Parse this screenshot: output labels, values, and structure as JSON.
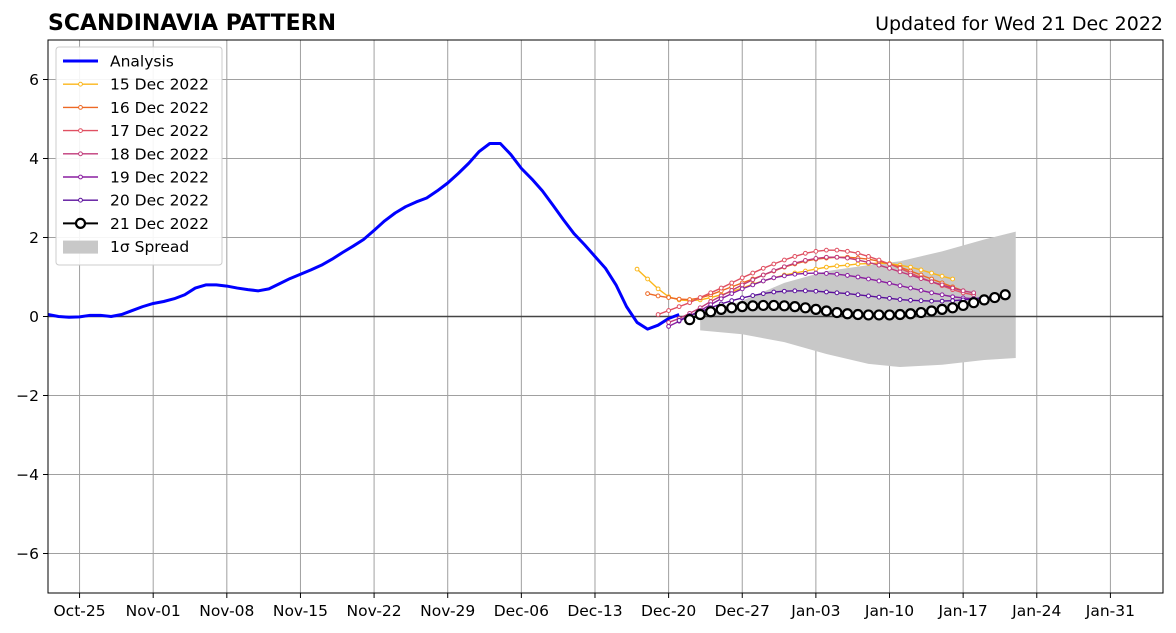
{
  "chart_data": {
    "type": "line",
    "title": "SCANDINAVIA PATTERN",
    "subtitle": "Updated for Wed 21 Dec 2022",
    "xlabel": "",
    "ylabel": "",
    "x_type": "date",
    "xlim": [
      "2022-10-22",
      "2023-02-05"
    ],
    "ylim": [
      -7,
      7
    ],
    "grid": true,
    "legend_position": "top-left",
    "x_ticks": [
      {
        "date": "2022-10-25",
        "label": "Oct-25"
      },
      {
        "date": "2022-11-01",
        "label": "Nov-01"
      },
      {
        "date": "2022-11-08",
        "label": "Nov-08"
      },
      {
        "date": "2022-11-15",
        "label": "Nov-15"
      },
      {
        "date": "2022-11-22",
        "label": "Nov-22"
      },
      {
        "date": "2022-11-29",
        "label": "Nov-29"
      },
      {
        "date": "2022-12-06",
        "label": "Dec-06"
      },
      {
        "date": "2022-12-13",
        "label": "Dec-13"
      },
      {
        "date": "2022-12-20",
        "label": "Dec-20"
      },
      {
        "date": "2022-12-27",
        "label": "Dec-27"
      },
      {
        "date": "2023-01-03",
        "label": "Jan-03"
      },
      {
        "date": "2023-01-10",
        "label": "Jan-10"
      },
      {
        "date": "2023-01-17",
        "label": "Jan-17"
      },
      {
        "date": "2023-01-24",
        "label": "Jan-24"
      },
      {
        "date": "2023-01-31",
        "label": "Jan-31"
      }
    ],
    "y_ticks": [
      {
        "value": 6,
        "label": "6"
      },
      {
        "value": 4,
        "label": "4"
      },
      {
        "value": 2,
        "label": "2"
      },
      {
        "value": 0,
        "label": "0"
      },
      {
        "value": -2,
        "label": "−2"
      },
      {
        "value": -4,
        "label": "−4"
      },
      {
        "value": -6,
        "label": "−6"
      }
    ],
    "spread": {
      "name": "1σ Spread",
      "color": "#c8c8c8",
      "x": [
        "2022-12-23",
        "2022-12-27",
        "2022-12-31",
        "2023-01-04",
        "2023-01-08",
        "2023-01-11",
        "2023-01-15",
        "2023-01-19",
        "2023-01-22"
      ],
      "upper": [
        0.0,
        0.4,
        0.85,
        1.15,
        1.3,
        1.4,
        1.65,
        1.95,
        2.15
      ],
      "lower": [
        -0.35,
        -0.45,
        -0.65,
        -0.95,
        -1.2,
        -1.28,
        -1.22,
        -1.1,
        -1.05
      ]
    },
    "analysis": {
      "name": "Analysis",
      "color": "#0000ff",
      "x": [
        "2022-10-22",
        "2022-10-23",
        "2022-10-24",
        "2022-10-25",
        "2022-10-26",
        "2022-10-27",
        "2022-10-28",
        "2022-10-29",
        "2022-10-30",
        "2022-10-31",
        "2022-11-01",
        "2022-11-02",
        "2022-11-03",
        "2022-11-04",
        "2022-11-05",
        "2022-11-06",
        "2022-11-07",
        "2022-11-08",
        "2022-11-09",
        "2022-11-10",
        "2022-11-11",
        "2022-11-12",
        "2022-11-13",
        "2022-11-14",
        "2022-11-15",
        "2022-11-16",
        "2022-11-17",
        "2022-11-18",
        "2022-11-19",
        "2022-11-20",
        "2022-11-21",
        "2022-11-22",
        "2022-11-23",
        "2022-11-24",
        "2022-11-25",
        "2022-11-26",
        "2022-11-27",
        "2022-11-28",
        "2022-11-29",
        "2022-11-30",
        "2022-12-01",
        "2022-12-02",
        "2022-12-03",
        "2022-12-04",
        "2022-12-05",
        "2022-12-06",
        "2022-12-07",
        "2022-12-08",
        "2022-12-09",
        "2022-12-10",
        "2022-12-11",
        "2022-12-12",
        "2022-12-13",
        "2022-12-14",
        "2022-12-15",
        "2022-12-16",
        "2022-12-17",
        "2022-12-18",
        "2022-12-19",
        "2022-12-20",
        "2022-12-21"
      ],
      "y": [
        0.05,
        0.0,
        -0.02,
        -0.01,
        0.03,
        0.03,
        0.0,
        0.05,
        0.15,
        0.25,
        0.33,
        0.38,
        0.45,
        0.55,
        0.72,
        0.8,
        0.8,
        0.77,
        0.72,
        0.68,
        0.65,
        0.7,
        0.83,
        0.96,
        1.07,
        1.18,
        1.3,
        1.45,
        1.62,
        1.78,
        1.95,
        2.18,
        2.42,
        2.62,
        2.78,
        2.9,
        3.0,
        3.18,
        3.38,
        3.62,
        3.88,
        4.18,
        4.38,
        4.38,
        4.1,
        3.75,
        3.48,
        3.18,
        2.82,
        2.45,
        2.1,
        1.82,
        1.52,
        1.22,
        0.8,
        0.25,
        -0.15,
        -0.32,
        -0.22,
        -0.05,
        0.05
      ]
    },
    "forecasts": [
      {
        "name": "15 Dec 2022",
        "color": "#fbb61a",
        "x": [
          "2022-12-17",
          "2022-12-18",
          "2022-12-19",
          "2022-12-20",
          "2022-12-21",
          "2022-12-22",
          "2022-12-23",
          "2022-12-24",
          "2022-12-25",
          "2022-12-26",
          "2022-12-27",
          "2022-12-28",
          "2022-12-29",
          "2022-12-30",
          "2022-12-31",
          "2023-01-01",
          "2023-01-02",
          "2023-01-03",
          "2023-01-04",
          "2023-01-05",
          "2023-01-06",
          "2023-01-07",
          "2023-01-08",
          "2023-01-09",
          "2023-01-10",
          "2023-01-11",
          "2023-01-12",
          "2023-01-13",
          "2023-01-14",
          "2023-01-15",
          "2023-01-16"
        ],
        "y": [
          1.2,
          0.95,
          0.7,
          0.5,
          0.42,
          0.4,
          0.42,
          0.48,
          0.55,
          0.63,
          0.72,
          0.82,
          0.9,
          0.98,
          1.05,
          1.1,
          1.15,
          1.2,
          1.25,
          1.28,
          1.3,
          1.33,
          1.34,
          1.35,
          1.34,
          1.3,
          1.25,
          1.18,
          1.1,
          1.02,
          0.95
        ]
      },
      {
        "name": "16 Dec 2022",
        "color": "#ed6925",
        "x": [
          "2022-12-18",
          "2022-12-19",
          "2022-12-20",
          "2022-12-21",
          "2022-12-22",
          "2022-12-23",
          "2022-12-24",
          "2022-12-25",
          "2022-12-26",
          "2022-12-27",
          "2022-12-28",
          "2022-12-29",
          "2022-12-30",
          "2022-12-31",
          "2023-01-01",
          "2023-01-02",
          "2023-01-03",
          "2023-01-04",
          "2023-01-05",
          "2023-01-06",
          "2023-01-07",
          "2023-01-08",
          "2023-01-09",
          "2023-01-10",
          "2023-01-11",
          "2023-01-12",
          "2023-01-13",
          "2023-01-14",
          "2023-01-15",
          "2023-01-16",
          "2023-01-17"
        ],
        "y": [
          0.58,
          0.52,
          0.48,
          0.44,
          0.43,
          0.47,
          0.55,
          0.65,
          0.75,
          0.85,
          0.95,
          1.05,
          1.15,
          1.25,
          1.33,
          1.4,
          1.45,
          1.48,
          1.5,
          1.5,
          1.48,
          1.45,
          1.4,
          1.33,
          1.25,
          1.15,
          1.05,
          0.95,
          0.85,
          0.75,
          0.65
        ]
      },
      {
        "name": "17 Dec 2022",
        "color": "#e05062",
        "x": [
          "2022-12-19",
          "2022-12-20",
          "2022-12-21",
          "2022-12-22",
          "2022-12-23",
          "2022-12-24",
          "2022-12-25",
          "2022-12-26",
          "2022-12-27",
          "2022-12-28",
          "2022-12-29",
          "2022-12-30",
          "2022-12-31",
          "2023-01-01",
          "2023-01-02",
          "2023-01-03",
          "2023-01-04",
          "2023-01-05",
          "2023-01-06",
          "2023-01-07",
          "2023-01-08",
          "2023-01-09",
          "2023-01-10",
          "2023-01-11",
          "2023-01-12",
          "2023-01-13",
          "2023-01-14",
          "2023-01-15",
          "2023-01-16",
          "2023-01-17",
          "2023-01-18"
        ],
        "y": [
          0.05,
          0.15,
          0.25,
          0.35,
          0.48,
          0.6,
          0.72,
          0.85,
          0.98,
          1.1,
          1.22,
          1.33,
          1.43,
          1.52,
          1.6,
          1.65,
          1.68,
          1.68,
          1.65,
          1.6,
          1.52,
          1.43,
          1.33,
          1.22,
          1.1,
          0.98,
          0.88,
          0.78,
          0.68,
          0.6,
          0.55
        ]
      },
      {
        "name": "18 Dec 2022",
        "color": "#c13a7a",
        "x": [
          "2022-12-20",
          "2022-12-21",
          "2022-12-22",
          "2022-12-23",
          "2022-12-24",
          "2022-12-25",
          "2022-12-26",
          "2022-12-27",
          "2022-12-28",
          "2022-12-29",
          "2022-12-30",
          "2022-12-31",
          "2023-01-01",
          "2023-01-02",
          "2023-01-03",
          "2023-01-04",
          "2023-01-05",
          "2023-01-06",
          "2023-01-07",
          "2023-01-08",
          "2023-01-09",
          "2023-01-10",
          "2023-01-11",
          "2023-01-12",
          "2023-01-13",
          "2023-01-14",
          "2023-01-15",
          "2023-01-16",
          "2023-01-17",
          "2023-01-18"
        ],
        "y": [
          -0.15,
          -0.05,
          0.08,
          0.22,
          0.38,
          0.52,
          0.66,
          0.8,
          0.93,
          1.05,
          1.16,
          1.26,
          1.35,
          1.42,
          1.47,
          1.5,
          1.5,
          1.48,
          1.43,
          1.37,
          1.3,
          1.22,
          1.13,
          1.05,
          0.96,
          0.88,
          0.8,
          0.72,
          0.65,
          0.6
        ]
      },
      {
        "name": "19 Dec 2022",
        "color": "#8a1fa0",
        "x": [
          "2022-12-20",
          "2022-12-21",
          "2022-12-22",
          "2022-12-23",
          "2022-12-24",
          "2022-12-25",
          "2022-12-26",
          "2022-12-27",
          "2022-12-28",
          "2022-12-29",
          "2022-12-30",
          "2022-12-31",
          "2023-01-01",
          "2023-01-02",
          "2023-01-03",
          "2023-01-04",
          "2023-01-05",
          "2023-01-06",
          "2023-01-07",
          "2023-01-08",
          "2023-01-09",
          "2023-01-10",
          "2023-01-11",
          "2023-01-12",
          "2023-01-13",
          "2023-01-14",
          "2023-01-15",
          "2023-01-16",
          "2023-01-17",
          "2023-01-18",
          "2023-01-19"
        ],
        "y": [
          -0.25,
          -0.12,
          0.02,
          0.15,
          0.3,
          0.45,
          0.58,
          0.7,
          0.8,
          0.9,
          0.98,
          1.03,
          1.07,
          1.09,
          1.1,
          1.09,
          1.07,
          1.04,
          1.0,
          0.95,
          0.9,
          0.84,
          0.78,
          0.72,
          0.66,
          0.6,
          0.55,
          0.5,
          0.47,
          0.45,
          0.45
        ]
      },
      {
        "name": "20 Dec 2022",
        "color": "#5a0f9b",
        "x": [
          "2022-12-21",
          "2022-12-22",
          "2022-12-23",
          "2022-12-24",
          "2022-12-25",
          "2022-12-26",
          "2022-12-27",
          "2022-12-28",
          "2022-12-29",
          "2022-12-30",
          "2022-12-31",
          "2023-01-01",
          "2023-01-02",
          "2023-01-03",
          "2023-01-04",
          "2023-01-05",
          "2023-01-06",
          "2023-01-07",
          "2023-01-08",
          "2023-01-09",
          "2023-01-10",
          "2023-01-11",
          "2023-01-12",
          "2023-01-13",
          "2023-01-14",
          "2023-01-15",
          "2023-01-16",
          "2023-01-17",
          "2023-01-18",
          "2023-01-19",
          "2023-01-20"
        ],
        "y": [
          -0.1,
          0.02,
          0.12,
          0.22,
          0.32,
          0.4,
          0.47,
          0.53,
          0.58,
          0.62,
          0.64,
          0.65,
          0.65,
          0.64,
          0.62,
          0.6,
          0.58,
          0.55,
          0.52,
          0.49,
          0.46,
          0.43,
          0.41,
          0.4,
          0.39,
          0.39,
          0.4,
          0.42,
          0.45,
          0.48,
          0.5
        ]
      },
      {
        "name": "21 Dec 2022",
        "color": "#000000",
        "x": [
          "2022-12-22",
          "2022-12-23",
          "2022-12-24",
          "2022-12-25",
          "2022-12-26",
          "2022-12-27",
          "2022-12-28",
          "2022-12-29",
          "2022-12-30",
          "2022-12-31",
          "2023-01-01",
          "2023-01-02",
          "2023-01-03",
          "2023-01-04",
          "2023-01-05",
          "2023-01-06",
          "2023-01-07",
          "2023-01-08",
          "2023-01-09",
          "2023-01-10",
          "2023-01-11",
          "2023-01-12",
          "2023-01-13",
          "2023-01-14",
          "2023-01-15",
          "2023-01-16",
          "2023-01-17",
          "2023-01-18",
          "2023-01-19",
          "2023-01-20",
          "2023-01-21"
        ],
        "y": [
          -0.08,
          0.05,
          0.12,
          0.18,
          0.22,
          0.25,
          0.27,
          0.28,
          0.28,
          0.27,
          0.25,
          0.22,
          0.18,
          0.14,
          0.1,
          0.07,
          0.05,
          0.04,
          0.04,
          0.04,
          0.05,
          0.07,
          0.1,
          0.14,
          0.18,
          0.22,
          0.28,
          0.35,
          0.42,
          0.48,
          0.55
        ]
      }
    ]
  }
}
